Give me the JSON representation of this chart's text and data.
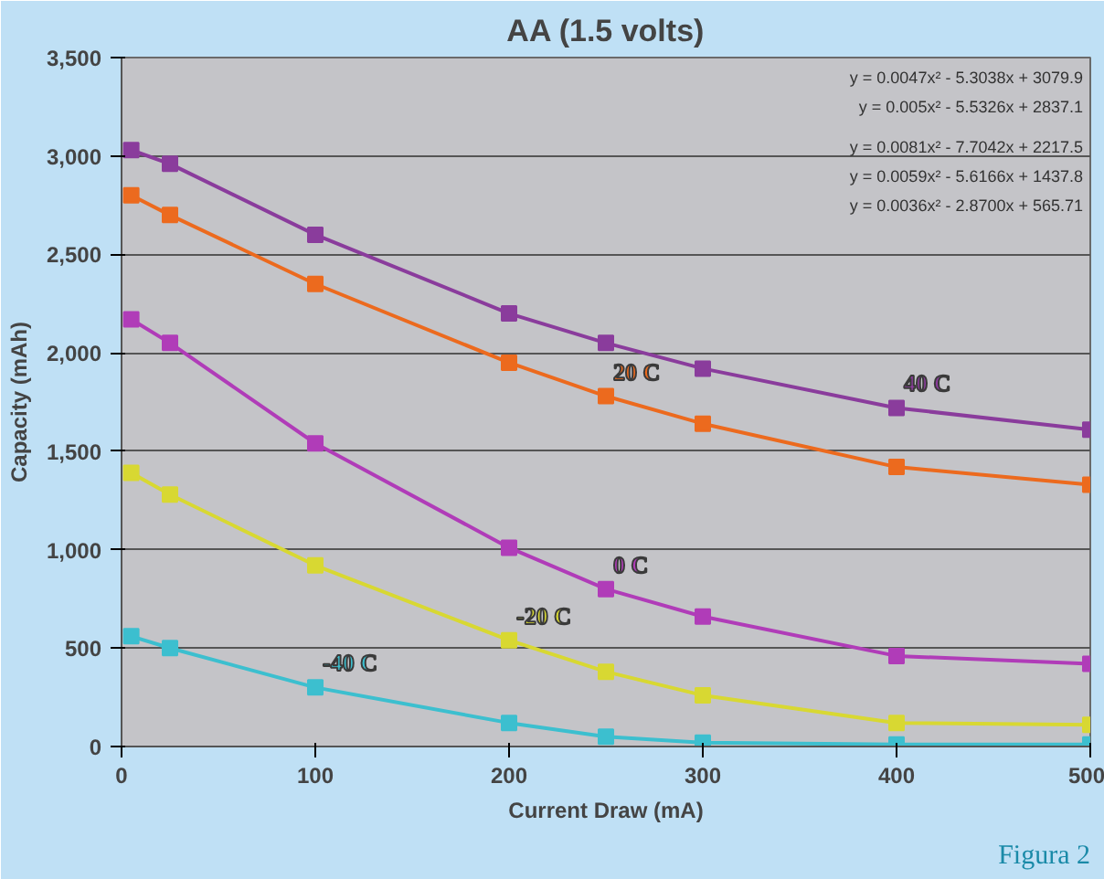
{
  "chart_data": {
    "type": "line",
    "title": "AA (1.5 volts)",
    "xlabel": "Current Draw (mA)",
    "ylabel": "Capacity (mAh)",
    "x": [
      5,
      25,
      100,
      200,
      250,
      300,
      400,
      500
    ],
    "xlim": [
      0,
      500
    ],
    "xticks": [
      0,
      100,
      200,
      300,
      400,
      500
    ],
    "ylim": [
      0,
      3500
    ],
    "yticks": [
      {
        "value": 0,
        "label": "0"
      },
      {
        "value": 500,
        "label": "500"
      },
      {
        "value": 1000,
        "label": "1,000"
      },
      {
        "value": 1500,
        "label": "1,500"
      },
      {
        "value": 2000,
        "label": "2,000"
      },
      {
        "value": 2500,
        "label": "2,500"
      },
      {
        "value": 3000,
        "label": "3,000"
      },
      {
        "value": 3500,
        "label": "3,500"
      }
    ],
    "grid": "y",
    "marker": "square",
    "line_style": "solid",
    "series": [
      {
        "name": "40 C",
        "color": "#8a3c9c",
        "values": [
          3030,
          2960,
          2600,
          2200,
          2050,
          1920,
          1720,
          1610
        ]
      },
      {
        "name": "20 C",
        "color": "#ec6a1e",
        "values": [
          2800,
          2700,
          2350,
          1950,
          1780,
          1640,
          1420,
          1330
        ]
      },
      {
        "name": "0 C",
        "color": "#b03cb8",
        "values": [
          2170,
          2050,
          1540,
          1010,
          800,
          660,
          460,
          420
        ]
      },
      {
        "name": "-20 C",
        "color": "#d8d832",
        "values": [
          1390,
          1280,
          920,
          540,
          380,
          260,
          120,
          110
        ]
      },
      {
        "name": "-40 C",
        "color": "#3cbfcf",
        "values": [
          560,
          500,
          300,
          120,
          50,
          20,
          10,
          10
        ]
      }
    ],
    "annotations": [
      "y = 0.0047x² - 5.3038x + 3079.9",
      "y = 0.005x² - 5.5326x + 2837.1",
      "y = 0.0081x² - 7.7042x + 2217.5",
      "y = 0.0059x² - 5.6166x + 1437.8",
      "y = 0.0036x² - 2.8700x + 565.71",
      "Figura 2"
    ]
  }
}
